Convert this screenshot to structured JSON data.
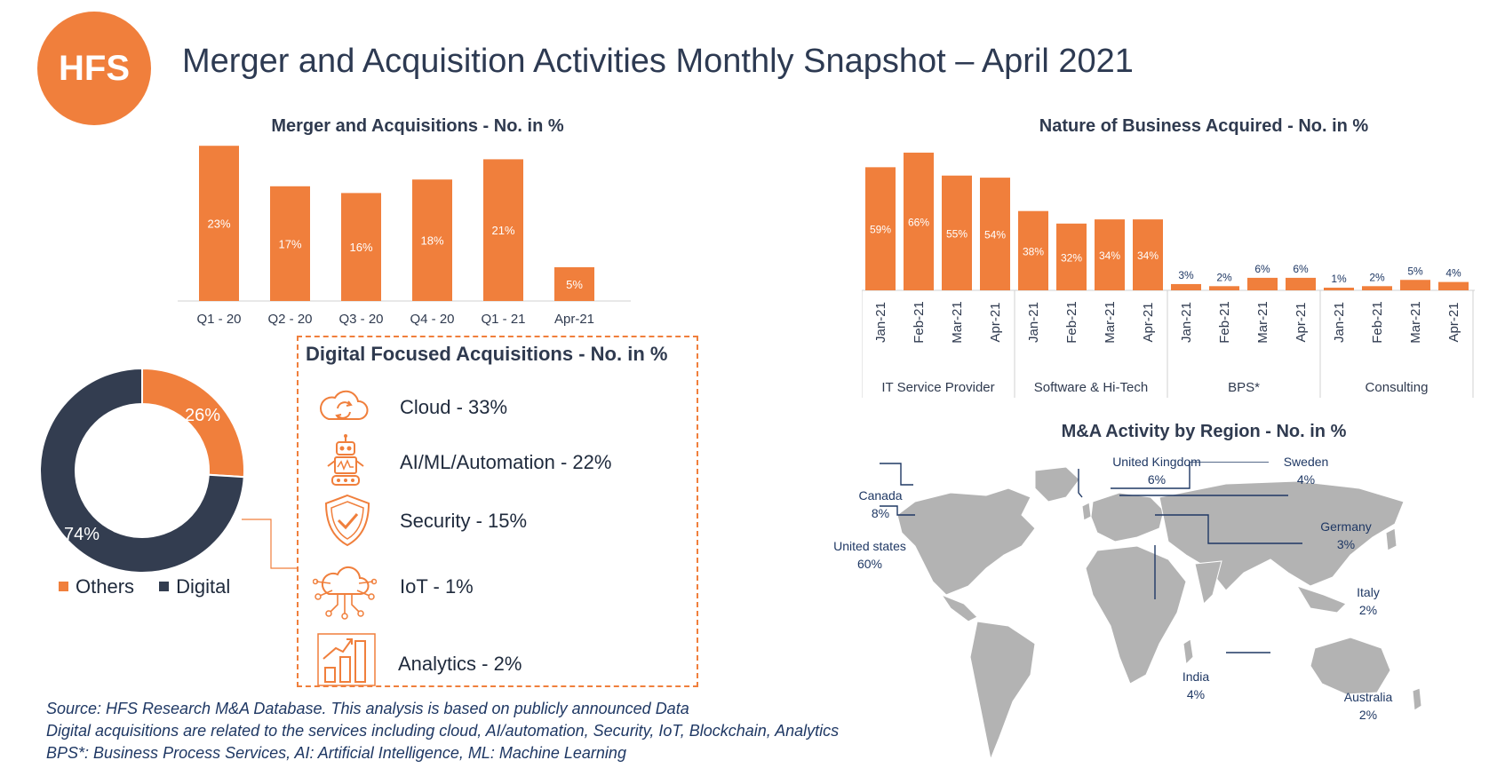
{
  "logo": "HFS",
  "title": "Merger and Acquisition Activities Monthly Snapshot – April 2021",
  "chart_data": [
    {
      "id": "ma",
      "type": "bar",
      "title": "Merger and Acquisitions  - No. in %",
      "categories": [
        "Q1 - 20",
        "Q2 - 20",
        "Q3 - 20",
        "Q4 - 20",
        "Q1 - 21",
        "Apr-21"
      ],
      "values": [
        23,
        17,
        16,
        18,
        21,
        5
      ],
      "labels": [
        "23%",
        "17%",
        "16%",
        "18%",
        "21%",
        "5%"
      ],
      "color": "#f07f3c"
    },
    {
      "id": "nature",
      "type": "bar",
      "title": "Nature of Business Acquired - No. in %",
      "groups": [
        {
          "name": "IT Service Provider",
          "categories": [
            "Jan-21",
            "Feb-21",
            "Mar-21",
            "Apr-21"
          ],
          "values": [
            59,
            66,
            55,
            54
          ],
          "labels": [
            "59%",
            "66%",
            "55%",
            "54%"
          ]
        },
        {
          "name": "Software & Hi-Tech",
          "categories": [
            "Jan-21",
            "Feb-21",
            "Mar-21",
            "Apr-21"
          ],
          "values": [
            38,
            32,
            34,
            34
          ],
          "labels": [
            "38%",
            "32%",
            "34%",
            "34%"
          ]
        },
        {
          "name": "BPS*",
          "categories": [
            "Jan-21",
            "Feb-21",
            "Mar-21",
            "Apr-21"
          ],
          "values": [
            3,
            2,
            6,
            6
          ],
          "labels": [
            "3%",
            "2%",
            "6%",
            "6%"
          ]
        },
        {
          "name": "Consulting",
          "categories": [
            "Jan-21",
            "Feb-21",
            "Mar-21",
            "Apr-21"
          ],
          "values": [
            1,
            2,
            5,
            4
          ],
          "labels": [
            "1%",
            "2%",
            "5%",
            "4%"
          ]
        }
      ],
      "color": "#f07f3c"
    },
    {
      "id": "donut",
      "type": "pie",
      "slices": [
        {
          "name": "Others",
          "value": 26,
          "label": "26%",
          "color": "#f07f3c"
        },
        {
          "name": "Digital",
          "value": 74,
          "label": "74%",
          "color": "#333d50"
        }
      ],
      "legend": [
        "Others",
        "Digital"
      ]
    }
  ],
  "digital": {
    "title": "Digital Focused Acquisitions - No. in %",
    "items": [
      {
        "icon": "cloud-icon",
        "label": "Cloud - 33%"
      },
      {
        "icon": "robot-icon",
        "label": "AI/ML/Automation - 22%"
      },
      {
        "icon": "shield-icon",
        "label": "Security - 15%"
      },
      {
        "icon": "iot-cloud-icon",
        "label": "IoT - 1%"
      },
      {
        "icon": "analytics-icon",
        "label": "Analytics - 2%"
      }
    ]
  },
  "region": {
    "title": "M&A Activity by Region - No. in %",
    "items": [
      {
        "name": "United Kingdom",
        "value": "6%"
      },
      {
        "name": "Sweden",
        "value": "4%"
      },
      {
        "name": "Canada",
        "value": "8%"
      },
      {
        "name": "Germany",
        "value": "3%"
      },
      {
        "name": "United states",
        "value": "60%"
      },
      {
        "name": "Italy",
        "value": "2%"
      },
      {
        "name": "India",
        "value": "4%"
      },
      {
        "name": "Australia",
        "value": "2%"
      }
    ]
  },
  "source": {
    "line1": "Source: HFS Research M&A Database. This analysis is based on publicly announced Data",
    "line2": "Digital acquisitions are related to the services including cloud, AI/automation, Security, IoT, Blockchain, Analytics",
    "line3": "BPS*: Business Process Services, AI: Artificial Intelligence, ML: Machine Learning"
  }
}
